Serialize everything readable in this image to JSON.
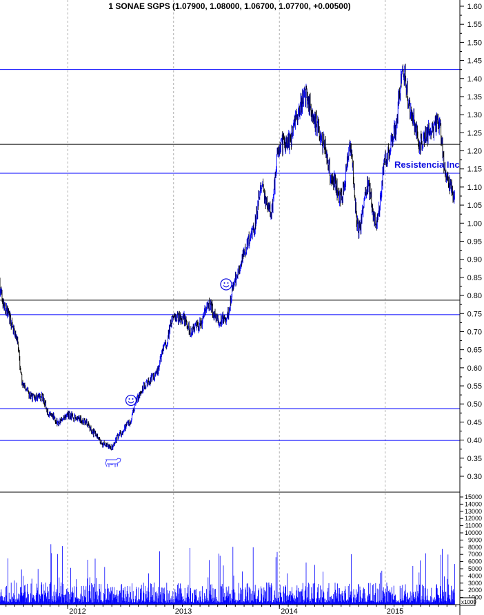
{
  "chart_data": {
    "type": "bar",
    "subtype": "ohlc-price-with-volume",
    "title": "1 SONAE SGPS (1.07900, 1.08000, 1.06700, 1.07700, +0.00500)",
    "price_axis": {
      "position": "right",
      "ylim": [
        0.3,
        1.6
      ],
      "ticks": [
        "1.60",
        "1.55",
        "1.50",
        "1.45",
        "1.40",
        "1.35",
        "1.30",
        "1.25",
        "1.20",
        "1.15",
        "1.10",
        "1.05",
        "1.00",
        "0.95",
        "0.90",
        "0.85",
        "0.80",
        "0.75",
        "0.70",
        "0.65",
        "0.60",
        "0.55",
        "0.50",
        "0.45",
        "0.40",
        "0.35",
        "0.30"
      ]
    },
    "volume_axis": {
      "position": "right",
      "ylim": [
        0,
        15000
      ],
      "unit_label": "x1000",
      "ticks": [
        "15000",
        "14000",
        "13000",
        "12000",
        "11000",
        "10000",
        "9000",
        "8000",
        "7000",
        "6000",
        "5000",
        "4000",
        "3000",
        "2000",
        "1000"
      ]
    },
    "x_ticks": [
      "2012",
      "2013",
      "2014",
      "2015"
    ],
    "grid": "vertical dashed at year boundaries",
    "colors": {
      "up": "#0000ff",
      "down": "#000000",
      "volume": "#0000ff",
      "support_line": "#0000ff",
      "resistance_line": "#000000"
    },
    "horizontal_lines": [
      {
        "price": 1.425,
        "color": "#0000ff"
      },
      {
        "price": 1.218,
        "color": "#000000"
      },
      {
        "price": 1.138,
        "color": "#0000ff"
      },
      {
        "price": 0.787,
        "color": "#000000"
      },
      {
        "price": 0.747,
        "color": "#0000ff"
      },
      {
        "price": 0.487,
        "color": "#0000ff"
      },
      {
        "price": 0.399,
        "color": "#0000ff"
      }
    ],
    "annotations": [
      {
        "text": "Resistencia Inc",
        "date": "2015-01-20",
        "price": 1.15
      },
      {
        "icon": "smiley",
        "date": "2012-09-10",
        "price": 0.5
      },
      {
        "icon": "smiley",
        "date": "2013-07-01",
        "price": 0.83
      },
      {
        "icon": "cow",
        "date": "2012-06-10",
        "price": 0.33
      }
    ],
    "series": [
      {
        "x": [
          "2011-05",
          "2011-06",
          "2011-07",
          "2011-08",
          "2011-09",
          "2011-10",
          "2011-11",
          "2011-12",
          "2012-01",
          "2012-02",
          "2012-03",
          "2012-04",
          "2012-05",
          "2012-06",
          "2012-07",
          "2012-08",
          "2012-09",
          "2012-10",
          "2012-11",
          "2012-12",
          "2013-01",
          "2013-02",
          "2013-03",
          "2013-04",
          "2013-05",
          "2013-06",
          "2013-07",
          "2013-08",
          "2013-09",
          "2013-10",
          "2013-11",
          "2013-12",
          "2014-01",
          "2014-02",
          "2014-03",
          "2014-04",
          "2014-05",
          "2014-06",
          "2014-07",
          "2014-08",
          "2014-09",
          "2014-10",
          "2014-11",
          "2014-12",
          "2015-01",
          "2015-02",
          "2015-03",
          "2015-04",
          "2015-05",
          "2015-06",
          "2015-07",
          "2015-08",
          "2015-09"
        ],
        "close": [
          0.84,
          0.76,
          0.7,
          0.55,
          0.52,
          0.52,
          0.47,
          0.45,
          0.47,
          0.46,
          0.45,
          0.42,
          0.39,
          0.38,
          0.42,
          0.45,
          0.52,
          0.56,
          0.58,
          0.66,
          0.74,
          0.74,
          0.7,
          0.72,
          0.78,
          0.73,
          0.74,
          0.84,
          0.92,
          0.98,
          1.1,
          1.03,
          1.22,
          1.22,
          1.3,
          1.36,
          1.28,
          1.22,
          1.12,
          1.07,
          1.2,
          0.98,
          1.1,
          1.0,
          1.17,
          1.25,
          1.42,
          1.3,
          1.22,
          1.25,
          1.28,
          1.12,
          1.077
        ]
      }
    ]
  }
}
